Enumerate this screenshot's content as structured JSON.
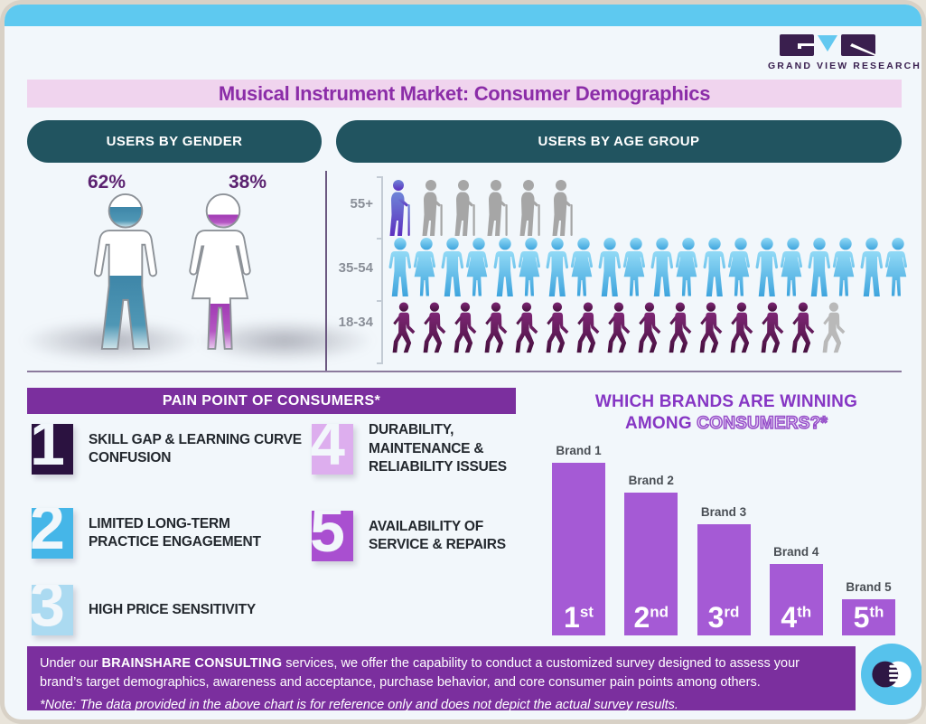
{
  "logo": {
    "name": "GRAND VIEW RESEARCH"
  },
  "page_title": "Musical Instrument Market: Consumer Demographics",
  "sections": {
    "gender_header": "USERS BY GENDER",
    "age_header": "USERS BY AGE GROUP"
  },
  "pain_points": {
    "header": "PAIN POINT OF CONSUMERS*",
    "items": [
      {
        "num": "1",
        "label": "SKILL GAP & LEARNING CURVE CONFUSION",
        "color": "#2b1240"
      },
      {
        "num": "2",
        "label": "LIMITED LONG-TERM PRACTICE ENGAGEMENT",
        "color": "#45b6e8"
      },
      {
        "num": "3",
        "label": "HIGH PRICE SENSITIVITY",
        "color": "#abdaf1"
      },
      {
        "num": "4",
        "label": "DURABILITY, MAINTENANCE & RELIABILITY ISSUES",
        "color": "#ddaeee"
      },
      {
        "num": "5",
        "label": "AVAILABILITY OF SERVICE & REPAIRS",
        "color": "#a94fd0"
      }
    ]
  },
  "brands_title": {
    "line1": "WHICH BRANDS ARE WINNING",
    "line2_solid": "AMONG",
    "line2_outline": "CONSUMERS?*"
  },
  "footer": {
    "text_prefix": "Under our ",
    "text_bold": "BRAINSHARE CONSULTING",
    "text_suffix": " services, we offer the capability to conduct a customized survey designed to assess your brand’s target demographics, awareness and acceptance, purchase behavior, and core consumer pain points among others.",
    "note": "*Note: The data provided in the above chart is for reference only and does not depict the actual survey results."
  },
  "chart_data": [
    {
      "type": "pictograph",
      "title": "USERS BY GENDER",
      "categories": [
        "Male",
        "Female"
      ],
      "values": [
        62,
        38
      ],
      "unit": "%",
      "labels": [
        "62%",
        "38%"
      ],
      "colors": {
        "male_fill": "#3e86a8",
        "female_fill": "#a13bb4"
      }
    },
    {
      "type": "pictograph",
      "title": "USERS BY AGE GROUP",
      "rows": [
        {
          "label": "55+",
          "icon": "elder-with-cane",
          "total": 6,
          "highlighted": 1
        },
        {
          "label": "35-54",
          "icon": "adult-alternating",
          "total": 20,
          "highlighted": 20
        },
        {
          "label": "18-34",
          "icon": "walking-person",
          "total": 15,
          "highlighted": 14
        }
      ],
      "note": "icon counts as drawn; highlighted = colored icons, remainder gray"
    },
    {
      "type": "bar",
      "title": "WHICH BRANDS ARE WINNING AMONG CONSUMERS?*",
      "categories": [
        "Brand 1",
        "Brand 2",
        "Brand 3",
        "Brand 4",
        "Brand 5"
      ],
      "values": [
        100,
        80,
        62,
        40,
        20
      ],
      "bar_labels": [
        "1st",
        "2nd",
        "3rd",
        "4th",
        "5th"
      ],
      "bar_color": "#a55ad5",
      "ylim": [
        0,
        100
      ],
      "grid": false,
      "legend": false,
      "note": "values are relative bar heights (% of tallest bar); chart shows rank only, no numeric axis"
    }
  ]
}
